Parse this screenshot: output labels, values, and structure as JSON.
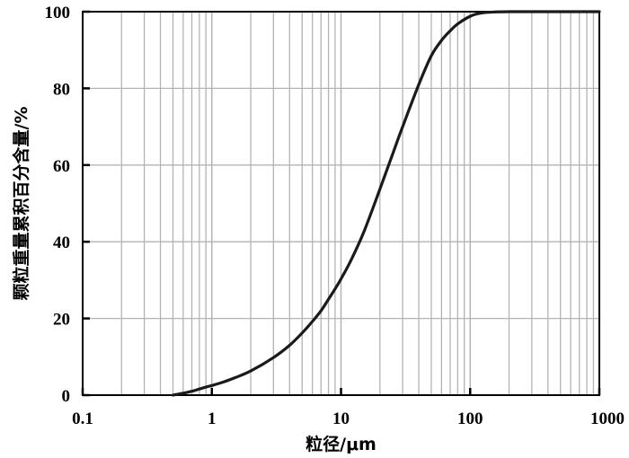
{
  "chart_data": {
    "type": "line",
    "title": "",
    "xlabel": "粒径/μm",
    "ylabel": "颗粒重量累积百分含量/%",
    "xscale": "log",
    "xlim": [
      0.1,
      1000
    ],
    "ylim": [
      0,
      100
    ],
    "x_ticks": [
      "0.1",
      "1",
      "10",
      "100",
      "1000"
    ],
    "y_ticks": [
      "0",
      "20",
      "40",
      "60",
      "80",
      "100"
    ],
    "grid": true,
    "legend": "none",
    "line_color": "#1a1a1a",
    "grid_color": "#b3b3b3",
    "series": [
      {
        "x": [
          0.5,
          0.6,
          0.7,
          0.8,
          0.9,
          1,
          1.2,
          1.5,
          2,
          3,
          4,
          5,
          6,
          7,
          8,
          9,
          10,
          12,
          15,
          20,
          25,
          30,
          40,
          50,
          60,
          70,
          80,
          100,
          120,
          150,
          200,
          300,
          500,
          1000
        ],
        "y": [
          0,
          0.5,
          1,
          1.6,
          2.1,
          2.5,
          3.3,
          4.5,
          6.3,
          9.8,
          13,
          16.2,
          19.2,
          22,
          25,
          27.7,
          30.3,
          35.3,
          42.5,
          53.7,
          62.7,
          70,
          81,
          88.5,
          92.5,
          95,
          96.8,
          98.8,
          99.6,
          99.9,
          100,
          100,
          100,
          100
        ]
      }
    ]
  }
}
